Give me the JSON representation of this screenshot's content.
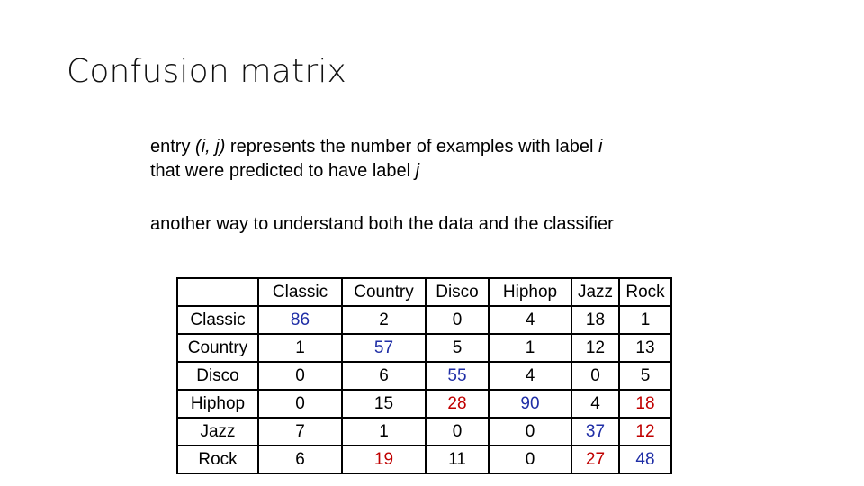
{
  "slide": {
    "title": "Confusion matrix",
    "description": {
      "line1": {
        "a": "entry ",
        "b": "(i, j)",
        "c": " represents the number of examples with label ",
        "d": "i"
      },
      "line2": {
        "a": "that were predicted to have label ",
        "b": "j"
      }
    },
    "note": "another way to understand both the data and the classifier"
  },
  "matrix": {
    "columns": [
      "Classic",
      "Country",
      "Disco",
      "Hiphop",
      "Jazz",
      "Rock"
    ],
    "rows": [
      {
        "label": "Classic",
        "values": [
          "86",
          "2",
          "0",
          "4",
          "18",
          "1"
        ]
      },
      {
        "label": "Country",
        "values": [
          "1",
          "57",
          "5",
          "1",
          "12",
          "13"
        ]
      },
      {
        "label": "Disco",
        "values": [
          "0",
          "6",
          "55",
          "4",
          "0",
          "5"
        ]
      },
      {
        "label": "Hiphop",
        "values": [
          "0",
          "15",
          "28",
          "90",
          "4",
          "18"
        ]
      },
      {
        "label": "Jazz",
        "values": [
          "7",
          "1",
          "0",
          "0",
          "37",
          "12"
        ]
      },
      {
        "label": "Rock",
        "values": [
          "6",
          "19",
          "11",
          "0",
          "27",
          "48"
        ]
      }
    ],
    "colors": {
      "diagonal": "#1f2ea6",
      "highlight": "#c00000",
      "default": "#000000"
    }
  }
}
